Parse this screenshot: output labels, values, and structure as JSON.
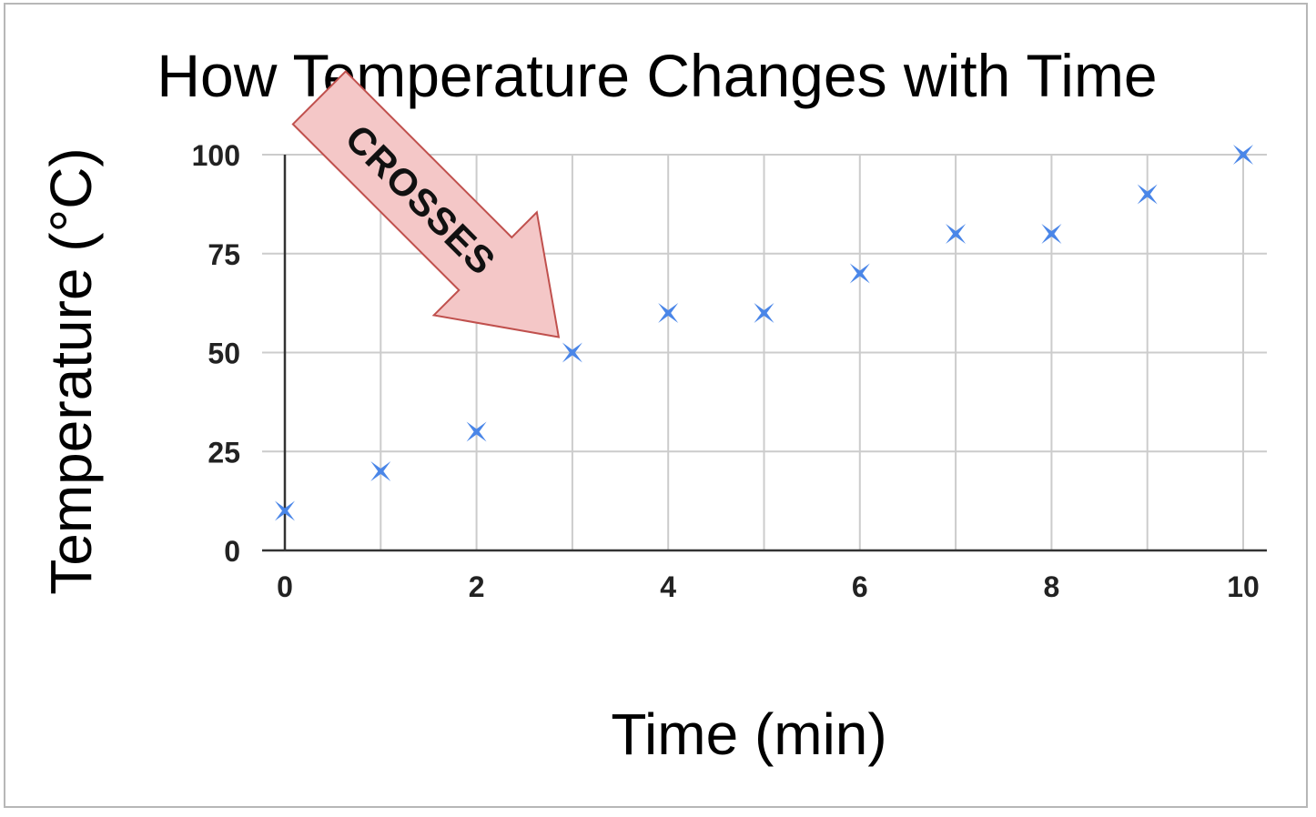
{
  "chart_data": {
    "type": "scatter",
    "title": "How Temperature Changes with Time",
    "xlabel": "Time (min)",
    "ylabel": "Temperature (°C)",
    "xlim": [
      0,
      10
    ],
    "ylim": [
      0,
      100
    ],
    "x_ticks": [
      "0",
      "2",
      "4",
      "6",
      "8",
      "10"
    ],
    "y_ticks": [
      "0",
      "25",
      "50",
      "75",
      "100"
    ],
    "x_tick_values": [
      0,
      2,
      4,
      6,
      8,
      10
    ],
    "y_tick_values": [
      0,
      25,
      50,
      75,
      100
    ],
    "x_grid_values": [
      0,
      1,
      2,
      3,
      4,
      5,
      6,
      7,
      8,
      9,
      10
    ],
    "grid": true,
    "marker": "cross",
    "marker_color": "#4a86e8",
    "points": [
      {
        "x": 0,
        "y": 10
      },
      {
        "x": 1,
        "y": 20
      },
      {
        "x": 2,
        "y": 30
      },
      {
        "x": 3,
        "y": 50
      },
      {
        "x": 4,
        "y": 60
      },
      {
        "x": 5,
        "y": 60
      },
      {
        "x": 6,
        "y": 70
      },
      {
        "x": 7,
        "y": 80
      },
      {
        "x": 8,
        "y": 80
      },
      {
        "x": 9,
        "y": 90
      },
      {
        "x": 10,
        "y": 100
      }
    ],
    "annotation": {
      "text": "CROSSES",
      "shape": "arrow",
      "fill": "#f4c7c7",
      "stroke": "#c0504d",
      "points_to": {
        "x": 3,
        "y": 50
      }
    }
  }
}
